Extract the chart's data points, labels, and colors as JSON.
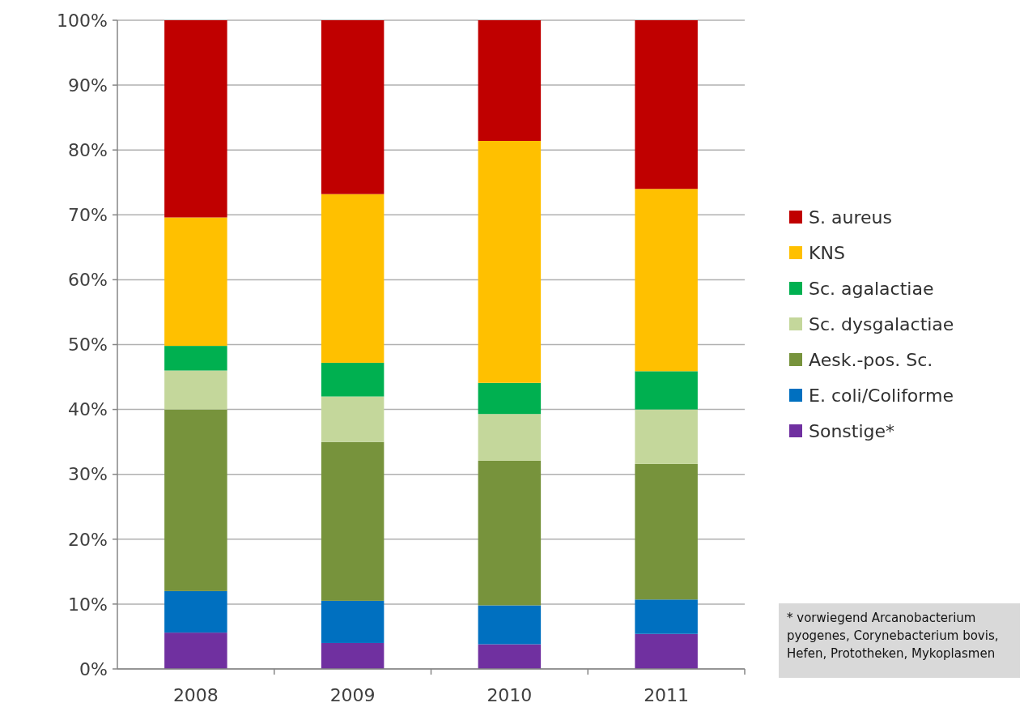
{
  "chart_data": {
    "type": "bar",
    "stacked": true,
    "categories": [
      "2008",
      "2009",
      "2010",
      "2011"
    ],
    "series": [
      {
        "name": "Sonstige*",
        "color": "#7030a0",
        "values": [
          5.6,
          4.0,
          3.8,
          5.4
        ]
      },
      {
        "name": "E. coli/Coliforme",
        "color": "#0070c0",
        "values": [
          6.4,
          6.5,
          6.0,
          5.3
        ]
      },
      {
        "name": "Aesk.-pos. Sc.",
        "color": "#77933c",
        "values": [
          28.0,
          24.5,
          22.3,
          20.9
        ]
      },
      {
        "name": "Sc. dysgalactiae",
        "color": "#c4d79b",
        "values": [
          6.0,
          7.0,
          7.2,
          8.4
        ]
      },
      {
        "name": "Sc. agalactiae",
        "color": "#00b050",
        "values": [
          3.8,
          5.2,
          4.8,
          5.9
        ]
      },
      {
        "name": "KNS",
        "color": "#ffc000",
        "values": [
          19.8,
          26.0,
          37.3,
          28.1
        ]
      },
      {
        "name": "S. aureus",
        "color": "#c00000",
        "values": [
          30.4,
          26.8,
          18.6,
          26.0
        ]
      }
    ],
    "ylim": [
      0,
      100
    ],
    "yticks": [
      {
        "value": 0,
        "label": "0%"
      },
      {
        "value": 10,
        "label": "10%"
      },
      {
        "value": 20,
        "label": "20%"
      },
      {
        "value": 30,
        "label": "30%"
      },
      {
        "value": 40,
        "label": "40%"
      },
      {
        "value": 50,
        "label": "50%"
      },
      {
        "value": 60,
        "label": "60%"
      },
      {
        "value": 70,
        "label": "70%"
      },
      {
        "value": 80,
        "label": "80%"
      },
      {
        "value": 90,
        "label": "90%"
      },
      {
        "value": 100,
        "label": "100%"
      }
    ],
    "grid": "y",
    "legend": "right",
    "annotations": [
      "* vorwiegend Arcanobacterium pyogenes, Corynebacterium bovis, Hefen, Prototheken, Mykoplasmen"
    ]
  }
}
